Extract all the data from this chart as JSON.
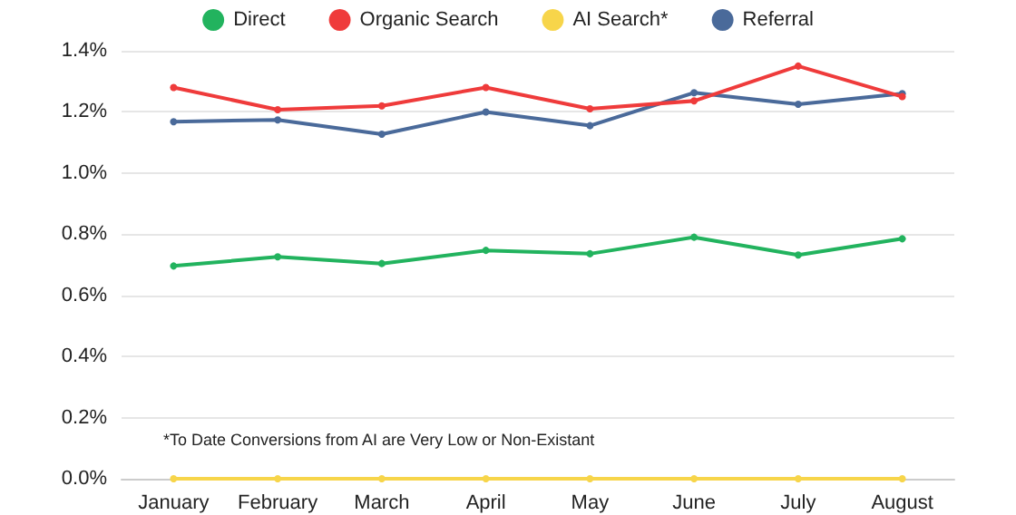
{
  "chart_data": {
    "type": "line",
    "categories": [
      "January",
      "February",
      "March",
      "April",
      "May",
      "June",
      "July",
      "August"
    ],
    "series": [
      {
        "name": "Direct",
        "color": "#22b35e",
        "values": [
          0.696,
          0.726,
          0.704,
          0.747,
          0.736,
          0.79,
          0.732,
          0.785
        ]
      },
      {
        "name": "Organic Search",
        "color": "#ef3b3b",
        "values": [
          1.28,
          1.207,
          1.22,
          1.28,
          1.21,
          1.236,
          1.35,
          1.25
        ]
      },
      {
        "name": "AI Search*",
        "color": "#f7d54a",
        "values": [
          0,
          0,
          0,
          0,
          0,
          0,
          0,
          0
        ]
      },
      {
        "name": "Referral",
        "color": "#4a6a9a",
        "values": [
          1.168,
          1.174,
          1.127,
          1.2,
          1.155,
          1.263,
          1.225,
          1.26
        ]
      }
    ],
    "ylim": [
      0,
      1.4
    ],
    "yticks": [
      {
        "value": 0,
        "label": "0.0%"
      },
      {
        "value": 0.2,
        "label": "0.2%"
      },
      {
        "value": 0.4,
        "label": "0.4%"
      },
      {
        "value": 0.6,
        "label": "0.6%"
      },
      {
        "value": 0.8,
        "label": "0.8%"
      },
      {
        "value": 1,
        "label": "1.0%"
      },
      {
        "value": 1.2,
        "label": "1.2%"
      },
      {
        "value": 1.4,
        "label": "1.4%"
      }
    ],
    "annotations": [
      "*To Date Conversions from AI are Very Low or Non-Existant"
    ],
    "grid": "y",
    "legend": "top",
    "marker": "circle",
    "line_style": "solid"
  }
}
